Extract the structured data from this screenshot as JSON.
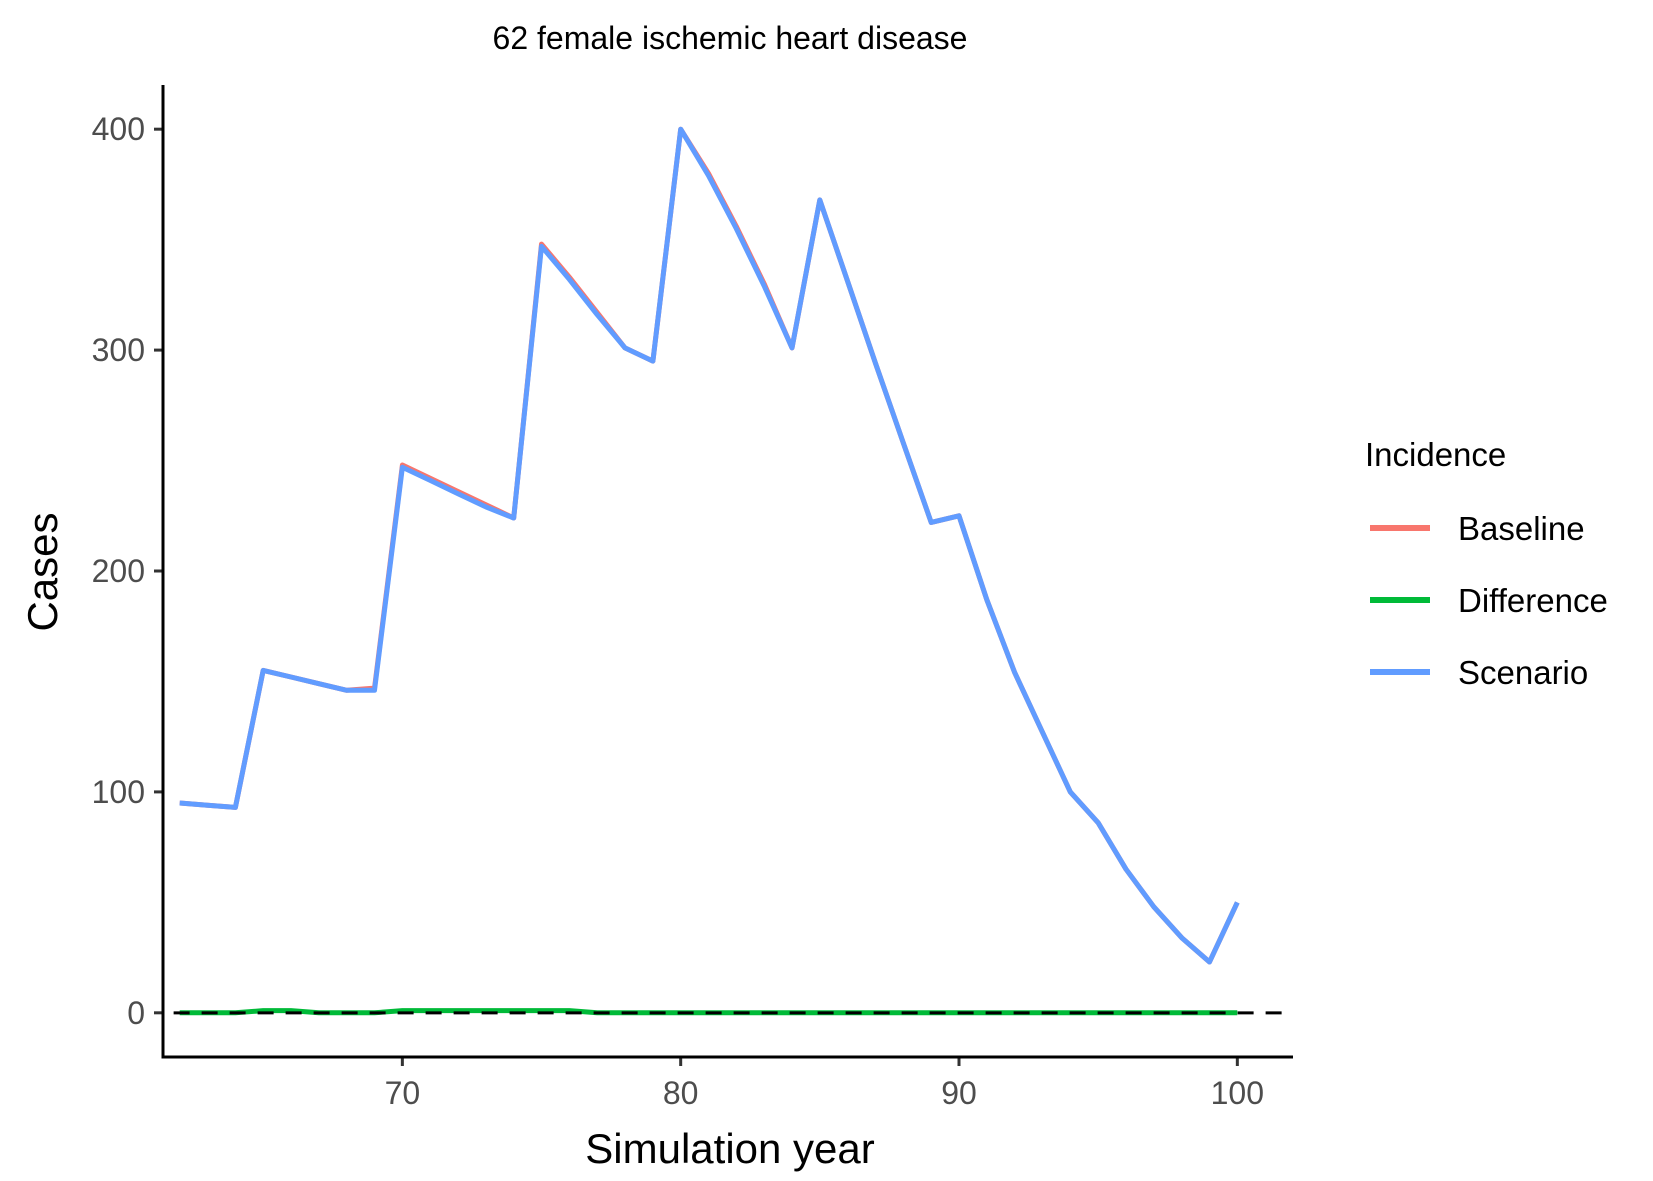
{
  "chart_data": {
    "type": "line",
    "title": "62 female ischemic heart disease",
    "xlabel": "Simulation year",
    "ylabel": "Cases",
    "xlim": [
      61.4,
      102
    ],
    "ylim": [
      -20,
      420
    ],
    "xticks": [
      70,
      80,
      90,
      100
    ],
    "yticks": [
      0,
      100,
      200,
      300,
      400
    ],
    "grid": false,
    "reference_line": {
      "y": 0,
      "style": "dashed",
      "color": "#000000"
    },
    "legend": {
      "title": "Incidence",
      "position": "right",
      "entries": [
        "Baseline",
        "Difference",
        "Scenario"
      ]
    },
    "x": [
      62,
      63,
      64,
      65,
      66,
      67,
      68,
      69,
      70,
      71,
      72,
      73,
      74,
      75,
      76,
      77,
      78,
      79,
      80,
      81,
      82,
      83,
      84,
      85,
      86,
      87,
      88,
      89,
      90,
      91,
      92,
      93,
      94,
      95,
      96,
      97,
      98,
      99,
      100
    ],
    "series": [
      {
        "name": "Baseline",
        "color": "#F8766D",
        "values": [
          95,
          94,
          93,
          155,
          152,
          149,
          146,
          147,
          248,
          242,
          236,
          230,
          224,
          348,
          333,
          317,
          301,
          295,
          400,
          380,
          356,
          330,
          301,
          368,
          331,
          294,
          258,
          222,
          225,
          187,
          154,
          127,
          100,
          86,
          65,
          48,
          34,
          23,
          50
        ]
      },
      {
        "name": "Difference",
        "color": "#00BA38",
        "values": [
          0,
          0,
          0,
          1,
          1,
          0,
          0,
          0,
          1,
          1,
          1,
          1,
          1,
          1,
          1,
          0,
          0,
          0,
          0,
          0,
          0,
          0,
          0,
          0,
          0,
          0,
          0,
          0,
          0,
          0,
          0,
          0,
          0,
          0,
          0,
          0,
          0,
          0,
          0
        ]
      },
      {
        "name": "Scenario",
        "color": "#619CFF",
        "values": [
          95,
          94,
          93,
          155,
          152,
          149,
          146,
          146,
          247,
          241,
          235,
          229,
          224,
          347,
          332,
          316,
          301,
          295,
          400,
          379,
          355,
          329,
          301,
          368,
          331,
          294,
          258,
          222,
          225,
          187,
          154,
          127,
          100,
          86,
          65,
          48,
          34,
          23,
          50
        ]
      }
    ]
  }
}
